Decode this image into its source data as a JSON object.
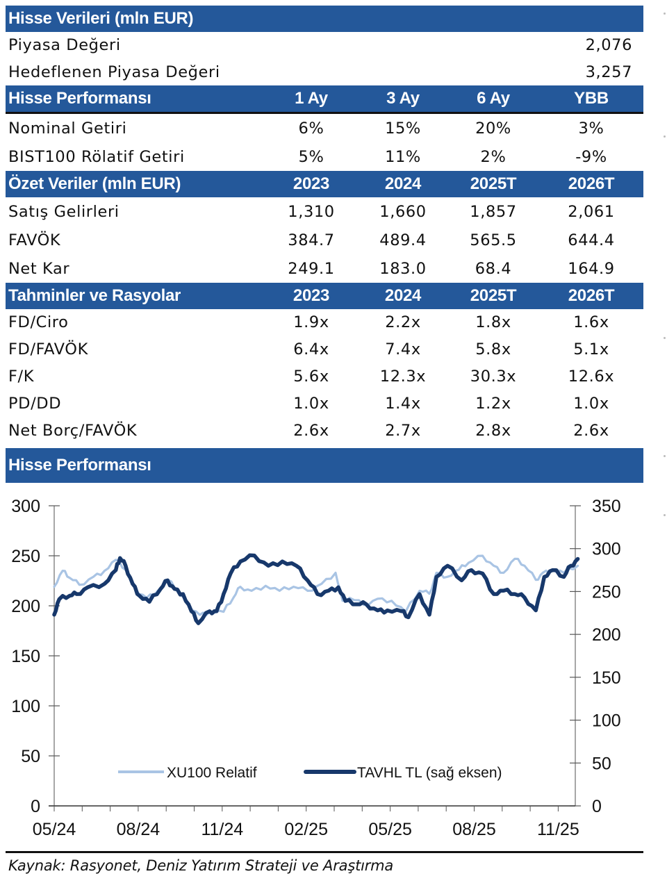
{
  "stock_data": {
    "title": "Hisse Verileri (mln EUR)",
    "rows": [
      {
        "label": "Piyasa Değeri",
        "value": "2,076"
      },
      {
        "label": "Hedeflenen Piyasa Değeri",
        "value": "3,257"
      }
    ]
  },
  "performance": {
    "title": "Hisse Performansı",
    "columns": [
      "1 Ay",
      "3 Ay",
      "6 Ay",
      "YBB"
    ],
    "rows": [
      {
        "label": "Nominal Getiri",
        "values": [
          "6%",
          "15%",
          "20%",
          "3%"
        ]
      },
      {
        "label": "BIST100 Rölatif Getiri",
        "values": [
          "5%",
          "11%",
          "2%",
          "-9%"
        ]
      }
    ]
  },
  "summary": {
    "title": "Özet Veriler (mln EUR)",
    "columns": [
      "2023",
      "2024",
      "2025T",
      "2026T"
    ],
    "rows": [
      {
        "label": "Satış Gelirleri",
        "values": [
          "1,310",
          "1,660",
          "1,857",
          "2,061"
        ]
      },
      {
        "label": "FAVÖK",
        "values": [
          "384.7",
          "489.4",
          "565.5",
          "644.4"
        ]
      },
      {
        "label": "Net Kar",
        "values": [
          "249.1",
          "183.0",
          "68.4",
          "164.9"
        ]
      }
    ]
  },
  "ratios": {
    "title": "Tahminler ve Rasyolar",
    "columns": [
      "2023",
      "2024",
      "2025T",
      "2026T"
    ],
    "rows": [
      {
        "label": "FD/Ciro",
        "values": [
          "1.9x",
          "2.2x",
          "1.8x",
          "1.6x"
        ]
      },
      {
        "label": "FD/FAVÖK",
        "values": [
          "6.4x",
          "7.4x",
          "5.8x",
          "5.1x"
        ]
      },
      {
        "label": "F/K",
        "values": [
          "5.6x",
          "12.3x",
          "30.3x",
          "12.6x"
        ]
      },
      {
        "label": "PD/DD",
        "values": [
          "1.0x",
          "1.4x",
          "1.2x",
          "1.0x"
        ]
      },
      {
        "label": "Net Borç/FAVÖK",
        "values": [
          "2.6x",
          "2.7x",
          "2.8x",
          "2.6x"
        ]
      }
    ]
  },
  "chart_section": {
    "title": "Hisse Performansı"
  },
  "source": "Kaynak: Rasyonet, Deniz Yatırım Strateji ve Araştırma",
  "colors": {
    "header_bg": "#24589a",
    "xu100": "#a9c4e4",
    "tavhl": "#17386b"
  },
  "chart_data": {
    "type": "line",
    "title": "Hisse Performansı",
    "xlabel": "",
    "ylabel_left": "",
    "ylabel_right": "",
    "x_tick_labels": [
      "05/24",
      "08/24",
      "11/24",
      "02/25",
      "05/25",
      "08/25",
      "11/25"
    ],
    "x_range_months": [
      0,
      18.6
    ],
    "ylim_left": [
      0,
      300
    ],
    "yticks_left": [
      0,
      50,
      100,
      150,
      200,
      250,
      300
    ],
    "ylim_right": [
      0,
      350
    ],
    "yticks_right": [
      0,
      50,
      100,
      150,
      200,
      250,
      300,
      350
    ],
    "grid": false,
    "legend_position": "bottom-center",
    "series": [
      {
        "name": "XU100 Relatif",
        "axis": "left",
        "x": [
          0,
          0.3,
          0.55,
          0.9,
          1.4,
          1.8,
          2.2,
          2.55,
          2.9,
          3.3,
          3.7,
          4.05,
          4.45,
          4.8,
          5.2,
          5.55,
          6.05,
          6.4,
          6.65,
          7.05,
          7.55,
          8.05,
          8.55,
          9.05,
          9.55,
          10.05,
          10.3,
          10.55,
          11.05,
          11.55,
          12.05,
          12.55,
          13.05,
          13.4,
          13.65,
          14.05,
          14.45,
          14.8,
          15.3,
          15.7,
          16.05,
          16.45,
          16.8,
          17.2,
          17.45,
          17.8,
          18.2,
          18.7
        ],
        "values": [
          219,
          235,
          228,
          221,
          229,
          235,
          246,
          236,
          217,
          208,
          215,
          226,
          214,
          201,
          191,
          194,
          194,
          208,
          219,
          215,
          220,
          215,
          219,
          215,
          222,
          233,
          205,
          208,
          201,
          207,
          205,
          194,
          215,
          212,
          233,
          229,
          236,
          243,
          250,
          240,
          233,
          247,
          240,
          226,
          233,
          236,
          233,
          240
        ]
      },
      {
        "name": "TAVHL TL (sağ eksen)",
        "axis": "right",
        "x": [
          0,
          0.18,
          0.55,
          0.8,
          1.2,
          1.8,
          2.2,
          2.35,
          2.55,
          2.8,
          3.05,
          3.4,
          3.8,
          4.05,
          4.3,
          4.6,
          4.9,
          5.15,
          5.55,
          5.8,
          6.05,
          6.3,
          6.65,
          7.15,
          7.65,
          8.15,
          8.65,
          9.05,
          9.4,
          9.8,
          10.15,
          10.4,
          10.8,
          11.15,
          11.55,
          11.9,
          12.4,
          12.65,
          13.05,
          13.4,
          13.65,
          14.05,
          14.55,
          14.9,
          15.3,
          15.7,
          16.05,
          16.45,
          16.8,
          17.2,
          17.5,
          17.8,
          18.2,
          18.45,
          18.7
        ],
        "values": [
          223,
          241,
          245,
          247,
          255,
          259,
          275,
          289,
          280,
          259,
          245,
          238,
          253,
          263,
          253,
          247,
          227,
          213,
          227,
          227,
          247,
          271,
          285,
          292,
          280,
          285,
          280,
          263,
          247,
          251,
          255,
          239,
          235,
          235,
          228,
          228,
          227,
          220,
          247,
          223,
          267,
          280,
          263,
          275,
          271,
          247,
          251,
          247,
          243,
          228,
          267,
          275,
          267,
          280,
          288
        ]
      }
    ]
  }
}
